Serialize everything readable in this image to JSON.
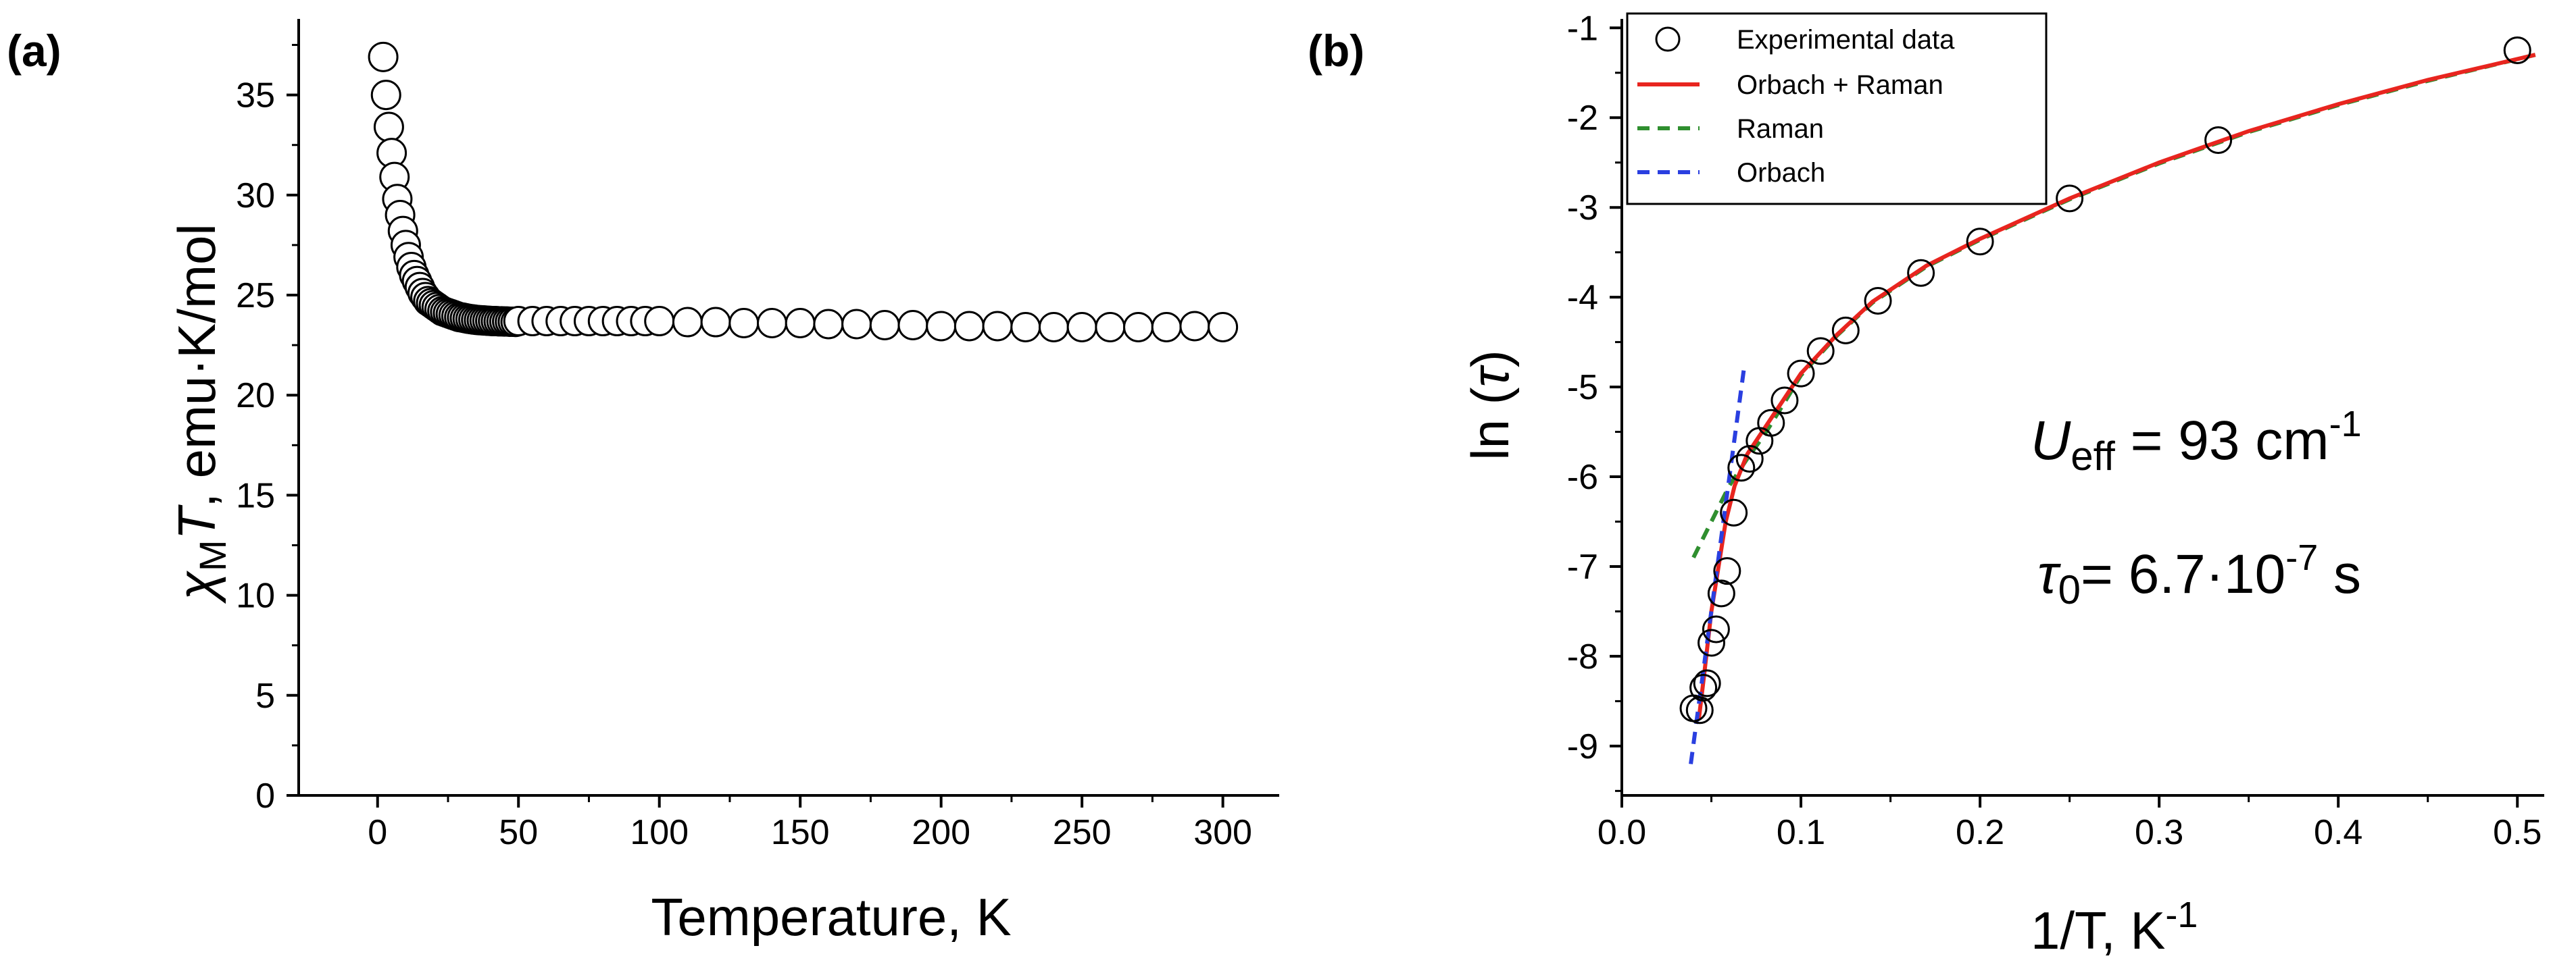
{
  "chart_data": [
    {
      "panel": "(a)",
      "type": "scatter",
      "title": "",
      "xlabel": "Temperature, K",
      "ylabel_symbol": "χ",
      "ylabel_sub": "M",
      "ylabel_italic": "T",
      "ylabel_rest": ", emu·K/mol",
      "xlim": [
        -28,
        320
      ],
      "ylim": [
        0,
        38.8
      ],
      "xticks": [
        0,
        50,
        100,
        150,
        200,
        250,
        300
      ],
      "yticks": [
        0,
        5,
        10,
        15,
        20,
        25,
        30,
        35
      ],
      "marker": "open-circle",
      "series": [
        {
          "name": "chiMT",
          "x": [
            2,
            3,
            4,
            5,
            6,
            7,
            8,
            9,
            10,
            11,
            12,
            13,
            14,
            15,
            16,
            17,
            18,
            19,
            20,
            21,
            22,
            23,
            24,
            25,
            26,
            27,
            28,
            29,
            30,
            31,
            32,
            33,
            34,
            35,
            36,
            37,
            38,
            39,
            40,
            41,
            42,
            43,
            44,
            45,
            46,
            47,
            48,
            49,
            50,
            55,
            60,
            65,
            70,
            75,
            80,
            85,
            90,
            95,
            100,
            110,
            120,
            130,
            140,
            150,
            160,
            170,
            180,
            190,
            200,
            210,
            220,
            230,
            240,
            250,
            260,
            270,
            280,
            290,
            300
          ],
          "y": [
            36.9,
            35.0,
            33.4,
            32.1,
            30.9,
            29.8,
            29.0,
            28.2,
            27.5,
            26.9,
            26.4,
            26.0,
            25.7,
            25.4,
            25.1,
            24.9,
            24.7,
            24.6,
            24.5,
            24.4,
            24.3,
            24.2,
            24.15,
            24.1,
            24.05,
            24.0,
            23.95,
            23.9,
            23.88,
            23.85,
            23.82,
            23.8,
            23.78,
            23.76,
            23.75,
            23.74,
            23.73,
            23.72,
            23.71,
            23.7,
            23.7,
            23.69,
            23.69,
            23.68,
            23.68,
            23.67,
            23.67,
            23.66,
            23.7,
            23.7,
            23.7,
            23.7,
            23.7,
            23.7,
            23.7,
            23.7,
            23.7,
            23.7,
            23.7,
            23.65,
            23.65,
            23.6,
            23.6,
            23.6,
            23.55,
            23.55,
            23.5,
            23.5,
            23.45,
            23.45,
            23.45,
            23.4,
            23.4,
            23.4,
            23.4,
            23.4,
            23.4,
            23.45,
            23.4
          ]
        }
      ]
    },
    {
      "panel": "(b)",
      "type": "scatter+line",
      "title": "",
      "xlabel_base": "1/T, K",
      "xlabel_sup": "-1",
      "ylabel_base": "ln (",
      "ylabel_symbol": "τ",
      "ylabel_close": ")",
      "xlim": [
        0,
        0.515
      ],
      "ylim": [
        -9.55,
        -0.9
      ],
      "xticks": [
        0.0,
        0.1,
        0.2,
        0.3,
        0.4,
        0.5
      ],
      "xtick_labels": [
        "0.0",
        "0.1",
        "0.2",
        "0.3",
        "0.4",
        "0.5"
      ],
      "yticks": [
        -9,
        -8,
        -7,
        -6,
        -5,
        -4,
        -3,
        -2,
        -1
      ],
      "legend": {
        "placement": "top-left",
        "entries": [
          {
            "label": "Experimental data",
            "style": "open-circle",
            "color": "#000000"
          },
          {
            "label": "Orbach + Raman",
            "style": "solid",
            "color": "#e8251f"
          },
          {
            "label": "Raman",
            "style": "dashed",
            "color": "#2f8f2f"
          },
          {
            "label": "Orbach",
            "style": "dashed",
            "color": "#2a3fe0"
          }
        ]
      },
      "experimental": {
        "x": [
          0.5,
          0.333,
          0.25,
          0.2,
          0.167,
          0.143,
          0.125,
          0.111,
          0.1,
          0.0909,
          0.0833,
          0.0769,
          0.0714,
          0.0667,
          0.0625,
          0.0588,
          0.0556,
          0.0526,
          0.05,
          0.0476,
          0.0455,
          0.0435,
          0.04
        ],
        "y": [
          -1.25,
          -2.25,
          -2.9,
          -3.38,
          -3.73,
          -4.04,
          -4.37,
          -4.6,
          -4.85,
          -5.15,
          -5.4,
          -5.6,
          -5.8,
          -5.9,
          -6.4,
          -7.05,
          -7.3,
          -7.7,
          -7.85,
          -8.3,
          -8.35,
          -8.6,
          -8.58
        ]
      },
      "orbach_raman": {
        "x": [
          0.043,
          0.046,
          0.05,
          0.054,
          0.058,
          0.063,
          0.07,
          0.08,
          0.09,
          0.1,
          0.12,
          0.14,
          0.17,
          0.2,
          0.25,
          0.3,
          0.35,
          0.4,
          0.45,
          0.51
        ],
        "y": [
          -8.7,
          -8.2,
          -7.5,
          -7.0,
          -6.5,
          -6.1,
          -5.75,
          -5.45,
          -5.15,
          -4.85,
          -4.42,
          -4.05,
          -3.65,
          -3.35,
          -2.9,
          -2.5,
          -2.15,
          -1.85,
          -1.58,
          -1.3
        ]
      },
      "raman": {
        "x": [
          0.04,
          0.05,
          0.06,
          0.07,
          0.08,
          0.09,
          0.1,
          0.12,
          0.14,
          0.17,
          0.2,
          0.25,
          0.3,
          0.35,
          0.4,
          0.45,
          0.51
        ],
        "y": [
          -6.9,
          -6.5,
          -6.1,
          -5.8,
          -5.52,
          -5.2,
          -4.87,
          -4.43,
          -4.06,
          -3.66,
          -3.36,
          -2.91,
          -2.51,
          -2.16,
          -1.86,
          -1.59,
          -1.3
        ]
      },
      "orbach": {
        "x": [
          0.0385,
          0.0685
        ],
        "y": [
          -9.2,
          -4.75
        ]
      },
      "annotations": {
        "ueff_U": "U",
        "ueff_sub": "eff",
        "ueff_value": " = 93 cm",
        "ueff_sup": "-1",
        "tau_symbol": "τ",
        "tau_sub": "0",
        "tau_value": "= 6.7·10",
        "tau_sup": "-7",
        "tau_unit": " s"
      }
    }
  ]
}
